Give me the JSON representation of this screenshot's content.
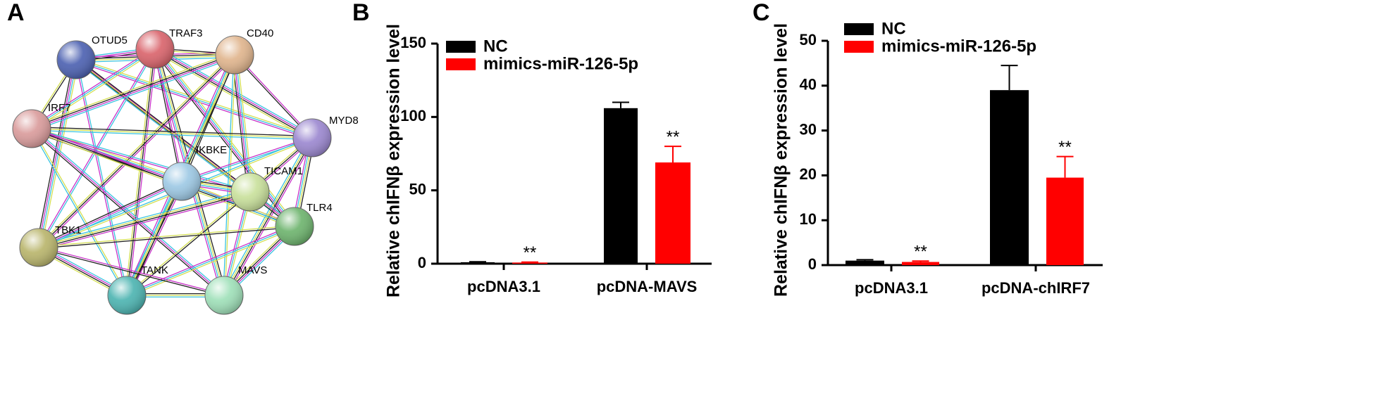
{
  "chart_data": [
    {
      "type": "network",
      "panel_label": "A",
      "nodes": [
        {
          "label": "OTUD5",
          "color": "#4a5fb0"
        },
        {
          "label": "TRAF3",
          "color": "#d9626a"
        },
        {
          "label": "CD40",
          "color": "#e0b48c"
        },
        {
          "label": "IRF7",
          "color": "#d99a9a"
        },
        {
          "label": "MYD8",
          "color": "#9a86cf"
        },
        {
          "label": "IKBKE",
          "color": "#9cc8e4"
        },
        {
          "label": "TICAM1",
          "color": "#c8e09a"
        },
        {
          "label": "TLR4",
          "color": "#6cb36c"
        },
        {
          "label": "TBK1",
          "color": "#b8b46a"
        },
        {
          "label": "TANK",
          "color": "#4ab3b0"
        },
        {
          "label": "MAVS",
          "color": "#9ee0b8"
        }
      ]
    },
    {
      "type": "bar",
      "panel_label": "B",
      "ylabel": "Relative chIFNβ expression level",
      "categories": [
        "pcDNA3.1",
        "pcDNA-MAVS"
      ],
      "series": [
        {
          "name": "NC",
          "color": "#000000",
          "values": [
            1,
            106
          ],
          "errors": [
            0.3,
            4
          ]
        },
        {
          "name": "mimics-miR-126-5p",
          "color": "#ff0000",
          "values": [
            0.8,
            69
          ],
          "errors": [
            0.3,
            11
          ],
          "significance": [
            "**",
            "**"
          ]
        }
      ],
      "ylim": [
        0,
        150
      ],
      "yticks": [
        0,
        50,
        100,
        150
      ]
    },
    {
      "type": "bar",
      "panel_label": "C",
      "ylabel": "Relative chIFNβ expression level",
      "categories": [
        "pcDNA3.1",
        "pcDNA-chIRF7"
      ],
      "series": [
        {
          "name": "NC",
          "color": "#000000",
          "values": [
            1,
            39
          ],
          "errors": [
            0.2,
            5.5
          ]
        },
        {
          "name": "mimics-miR-126-5p",
          "color": "#ff0000",
          "values": [
            0.7,
            19.5
          ],
          "errors": [
            0.2,
            4.7
          ],
          "significance": [
            "**",
            "**"
          ]
        }
      ],
      "ylim": [
        0,
        50
      ],
      "yticks": [
        0,
        10,
        20,
        30,
        40,
        50
      ]
    }
  ]
}
